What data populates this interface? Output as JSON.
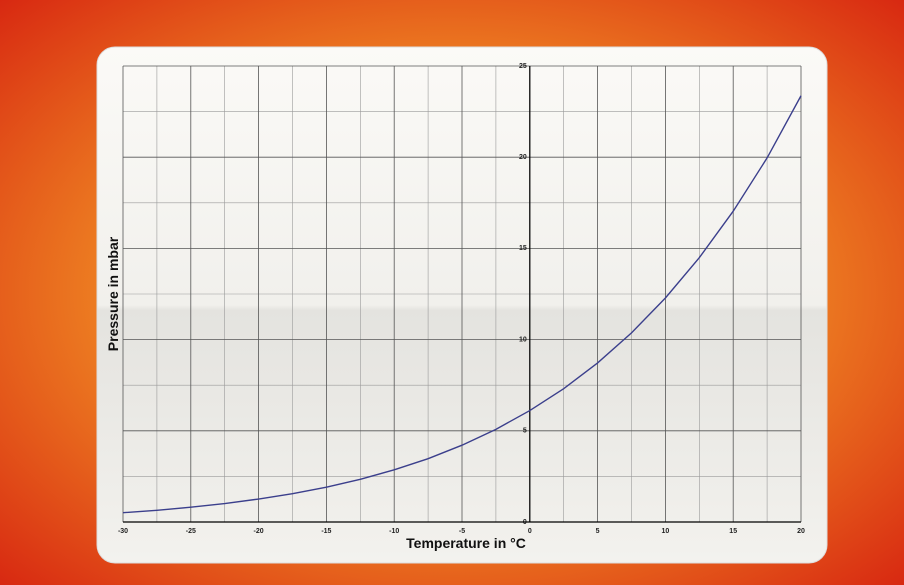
{
  "chart_data": {
    "type": "line",
    "x_label": "Temperature in °C",
    "y_label": "Pressure in mbar",
    "x": [
      -30,
      -27.5,
      -25,
      -22.5,
      -20,
      -17.5,
      -15,
      -12.5,
      -10,
      -7.5,
      -5,
      -2.5,
      0,
      2.5,
      5,
      7.5,
      10,
      12.5,
      15,
      17.5,
      20
    ],
    "values": [
      0.51,
      0.64,
      0.81,
      1.01,
      1.26,
      1.55,
      1.91,
      2.34,
      2.86,
      3.47,
      4.21,
      5.08,
      6.11,
      7.31,
      8.72,
      10.37,
      12.28,
      14.49,
      17.04,
      19.96,
      23.37
    ],
    "color": "#3b3f8c",
    "xlim": [
      -30,
      20
    ],
    "ylim": [
      0,
      25
    ],
    "xticks": [
      -30,
      -25,
      -20,
      -15,
      -10,
      -5,
      0,
      5,
      10,
      15,
      20
    ],
    "yticks": [
      0,
      5,
      10,
      15,
      20,
      25
    ],
    "x_minor_ticks": [
      -27.5,
      -22.5,
      -17.5,
      -12.5,
      -7.5,
      -2.5,
      2.5,
      7.5,
      12.5,
      17.5
    ],
    "y_minor_ticks": [
      2.5,
      7.5,
      12.5,
      17.5,
      22.5
    ],
    "grid": true
  }
}
